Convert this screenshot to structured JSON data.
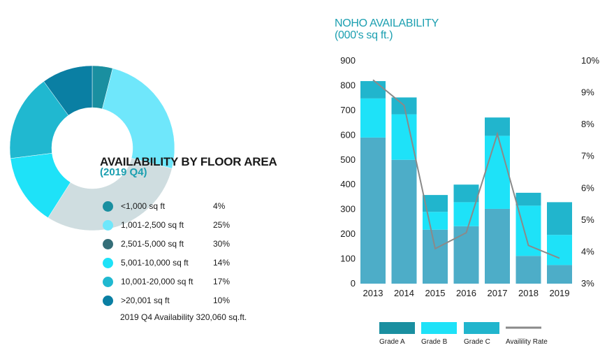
{
  "floor_area": {
    "title": "AVAILABILITY BY FLOOR AREA",
    "subtitle": "(2019 Q4)",
    "total_note": "2019 Q4 Availability 320,060 sq.ft."
  },
  "noho": {
    "title_line1": "NOHO AVAILABILITY",
    "title_line2": "(000's sq ft.)"
  },
  "chart_data": [
    {
      "type": "pie",
      "title": "AVAILABILITY BY FLOOR AREA",
      "subtitle": "(2019 Q4)",
      "donut": true,
      "categories": [
        "<1,000 sq ft",
        "1,001-2,500 sq ft",
        "2,501-5,000 sq ft",
        "5,001-10,000 sq ft",
        "10,001-20,000 sq ft",
        ">20,001 sq ft"
      ],
      "values": [
        4,
        25,
        30,
        14,
        17,
        10
      ],
      "labels": [
        "4%",
        "25%",
        "30%",
        "14%",
        "17%",
        "10%"
      ],
      "colors": [
        "#1a8fa0",
        "#6fe7fb",
        "#356e78",
        "#1ee2f8",
        "#20b8d0",
        "#0a7fa3"
      ],
      "highlight_index": 2,
      "highlight_color": "#cfdde0"
    },
    {
      "type": "bar",
      "stacked": true,
      "title": "NOHO AVAILABILITY",
      "subtitle": "(000's sq ft.)",
      "categories": [
        "2013",
        "2014",
        "2015",
        "2016",
        "2017",
        "2018",
        "2019"
      ],
      "series": [
        {
          "name": "Grade A",
          "values": [
            590,
            500,
            218,
            232,
            302,
            112,
            75
          ],
          "color": "#4dadc8"
        },
        {
          "name": "Grade B",
          "values": [
            158,
            184,
            72,
            97,
            295,
            203,
            122
          ],
          "color": "#1ee2f8"
        },
        {
          "name": "Grade C",
          "values": [
            70,
            68,
            68,
            71,
            74,
            52,
            132
          ],
          "color": "#21b5cd"
        }
      ],
      "legend_swatch_colors": [
        "#1a8fa0",
        "#1ee2f8",
        "#21b5cd"
      ],
      "ylim": [
        0,
        900
      ],
      "yticks": [
        "0",
        "100",
        "200",
        "300",
        "400",
        "500",
        "600",
        "700",
        "800",
        "900"
      ],
      "secondary_axis": {
        "ylim": [
          3,
          10
        ],
        "ticks": [
          "3%",
          "4%",
          "5%",
          "6%",
          "7%",
          "8%",
          "9%",
          "10%"
        ]
      },
      "line_series": {
        "name": "Availility Rate",
        "values": [
          9.4,
          8.6,
          4.1,
          4.6,
          7.7,
          4.2,
          3.8
        ],
        "color": "#8a8a8a"
      },
      "legend": [
        "Grade A",
        "Grade B",
        "Grade C",
        "Availility Rate"
      ],
      "legend_position": "bottom"
    }
  ]
}
